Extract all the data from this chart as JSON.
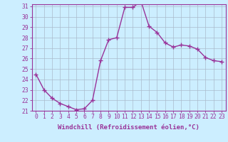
{
  "x": [
    0,
    1,
    2,
    3,
    4,
    5,
    6,
    7,
    8,
    9,
    10,
    11,
    12,
    13,
    14,
    15,
    16,
    17,
    18,
    19,
    20,
    21,
    22,
    23
  ],
  "y": [
    24.5,
    23.0,
    22.2,
    21.7,
    21.4,
    21.1,
    21.2,
    22.0,
    25.8,
    27.8,
    28.0,
    30.9,
    30.9,
    31.5,
    29.1,
    28.5,
    27.5,
    27.1,
    27.3,
    27.2,
    26.9,
    26.1,
    25.8,
    25.7
  ],
  "line_color": "#993399",
  "marker": "+",
  "marker_size": 4,
  "bg_color": "#cceeff",
  "grid_color": "#aabbcc",
  "xlabel": "Windchill (Refroidissement éolien,°C)",
  "ylim": [
    21,
    31
  ],
  "xlim": [
    -0.5,
    23.5
  ],
  "yticks": [
    21,
    22,
    23,
    24,
    25,
    26,
    27,
    28,
    29,
    30,
    31
  ],
  "xticks": [
    0,
    1,
    2,
    3,
    4,
    5,
    6,
    7,
    8,
    9,
    10,
    11,
    12,
    13,
    14,
    15,
    16,
    17,
    18,
    19,
    20,
    21,
    22,
    23
  ],
  "tick_color": "#993399",
  "tick_label_color": "#993399",
  "xlabel_color": "#993399",
  "label_fontsize": 6.5,
  "tick_fontsize": 5.8,
  "line_width": 1.0
}
